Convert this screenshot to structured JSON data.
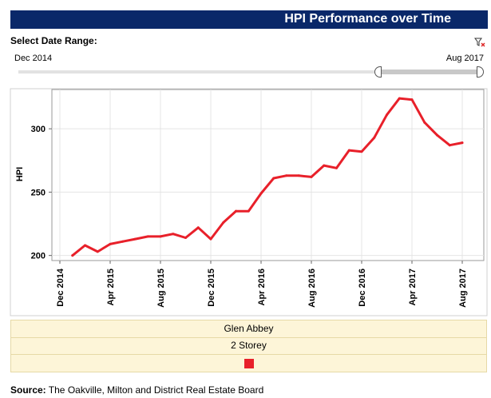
{
  "header": {
    "title": "HPI Performance over Time"
  },
  "filter": {
    "label": "Select Date Range:",
    "start": "Dec 2014",
    "end": "Aug 2017",
    "icon": "clear-filter-icon"
  },
  "legend": {
    "rows": [
      "Glen Abbey",
      "2 Storey"
    ],
    "swatch_color": "#e8202a"
  },
  "source": {
    "label": "Source:",
    "text": " The Oakville, Milton and District Real Estate Board"
  },
  "chart_data": {
    "type": "line",
    "title": "",
    "xlabel": "",
    "ylabel": "HPI",
    "grid": true,
    "ylim": [
      196,
      331
    ],
    "xlim": [
      "2014-12",
      "2017-08"
    ],
    "x_ticks": [
      "Dec 2014",
      "Apr 2015",
      "Aug 2015",
      "Dec 2015",
      "Apr 2016",
      "Aug 2016",
      "Dec 2016",
      "Apr 2017",
      "Aug 2017"
    ],
    "y_ticks": [
      200,
      250,
      300
    ],
    "series": [
      {
        "color": "#e8202a",
        "x": [
          "2015-01",
          "2015-02",
          "2015-03",
          "2015-04",
          "2015-05",
          "2015-06",
          "2015-07",
          "2015-08",
          "2015-09",
          "2015-10",
          "2015-11",
          "2015-12",
          "2016-01",
          "2016-02",
          "2016-03",
          "2016-04",
          "2016-05",
          "2016-06",
          "2016-07",
          "2016-08",
          "2016-09",
          "2016-10",
          "2016-11",
          "2016-12",
          "2017-01",
          "2017-02",
          "2017-03",
          "2017-04",
          "2017-05",
          "2017-06",
          "2017-07",
          "2017-08"
        ],
        "values": [
          200,
          208,
          203,
          209,
          211,
          213,
          215,
          215,
          217,
          214,
          222,
          213,
          226,
          235,
          235,
          249,
          261,
          263,
          263,
          262,
          271,
          269,
          283,
          282,
          293,
          311,
          324,
          323,
          305,
          295,
          287,
          289
        ]
      }
    ]
  }
}
